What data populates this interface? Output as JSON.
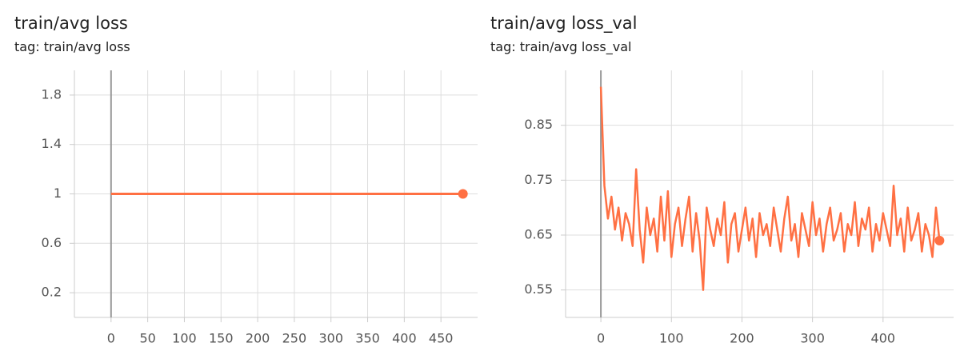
{
  "chart_data": [
    {
      "type": "line",
      "title": "train/avg loss",
      "subtitle": "tag: train/avg loss",
      "color": "#ff7043",
      "x": [
        0,
        480
      ],
      "values": [
        1,
        1
      ],
      "xlim": [
        -50,
        500
      ],
      "ylim": [
        0,
        2
      ],
      "xticks": [
        0,
        50,
        100,
        150,
        200,
        250,
        300,
        350,
        400,
        450
      ],
      "yticks": [
        0.2,
        0.6,
        1,
        1.4,
        1.8
      ],
      "grid": true
    },
    {
      "type": "line",
      "title": "train/avg loss_val",
      "subtitle": "tag: train/avg loss_val",
      "color": "#ff7043",
      "x": [
        0,
        5,
        10,
        15,
        20,
        25,
        30,
        35,
        40,
        45,
        50,
        55,
        60,
        65,
        70,
        75,
        80,
        85,
        90,
        95,
        100,
        105,
        110,
        115,
        120,
        125,
        130,
        135,
        140,
        145,
        150,
        155,
        160,
        165,
        170,
        175,
        180,
        185,
        190,
        195,
        200,
        205,
        210,
        215,
        220,
        225,
        230,
        235,
        240,
        245,
        250,
        255,
        260,
        265,
        270,
        275,
        280,
        285,
        290,
        295,
        300,
        305,
        310,
        315,
        320,
        325,
        330,
        335,
        340,
        345,
        350,
        355,
        360,
        365,
        370,
        375,
        380,
        385,
        390,
        395,
        400,
        405,
        410,
        415,
        420,
        425,
        430,
        435,
        440,
        445,
        450,
        455,
        460,
        465,
        470,
        475,
        480
      ],
      "values": [
        0.92,
        0.74,
        0.68,
        0.72,
        0.66,
        0.7,
        0.64,
        0.69,
        0.67,
        0.63,
        0.77,
        0.66,
        0.6,
        0.7,
        0.65,
        0.68,
        0.62,
        0.72,
        0.64,
        0.73,
        0.61,
        0.67,
        0.7,
        0.63,
        0.68,
        0.72,
        0.62,
        0.69,
        0.64,
        0.55,
        0.7,
        0.66,
        0.63,
        0.68,
        0.65,
        0.71,
        0.6,
        0.67,
        0.69,
        0.62,
        0.66,
        0.7,
        0.64,
        0.68,
        0.61,
        0.69,
        0.65,
        0.67,
        0.63,
        0.7,
        0.66,
        0.62,
        0.68,
        0.72,
        0.64,
        0.67,
        0.61,
        0.69,
        0.66,
        0.63,
        0.71,
        0.65,
        0.68,
        0.62,
        0.67,
        0.7,
        0.64,
        0.66,
        0.69,
        0.62,
        0.67,
        0.65,
        0.71,
        0.63,
        0.68,
        0.66,
        0.7,
        0.62,
        0.67,
        0.64,
        0.69,
        0.66,
        0.63,
        0.74,
        0.65,
        0.68,
        0.62,
        0.7,
        0.64,
        0.66,
        0.69,
        0.62,
        0.67,
        0.65,
        0.61,
        0.7,
        0.64
      ],
      "xlim": [
        -50,
        500
      ],
      "ylim": [
        0.5,
        0.95
      ],
      "xticks": [
        0,
        100,
        200,
        300,
        400
      ],
      "yticks": [
        0.55,
        0.65,
        0.75,
        0.85
      ],
      "grid": true
    }
  ]
}
